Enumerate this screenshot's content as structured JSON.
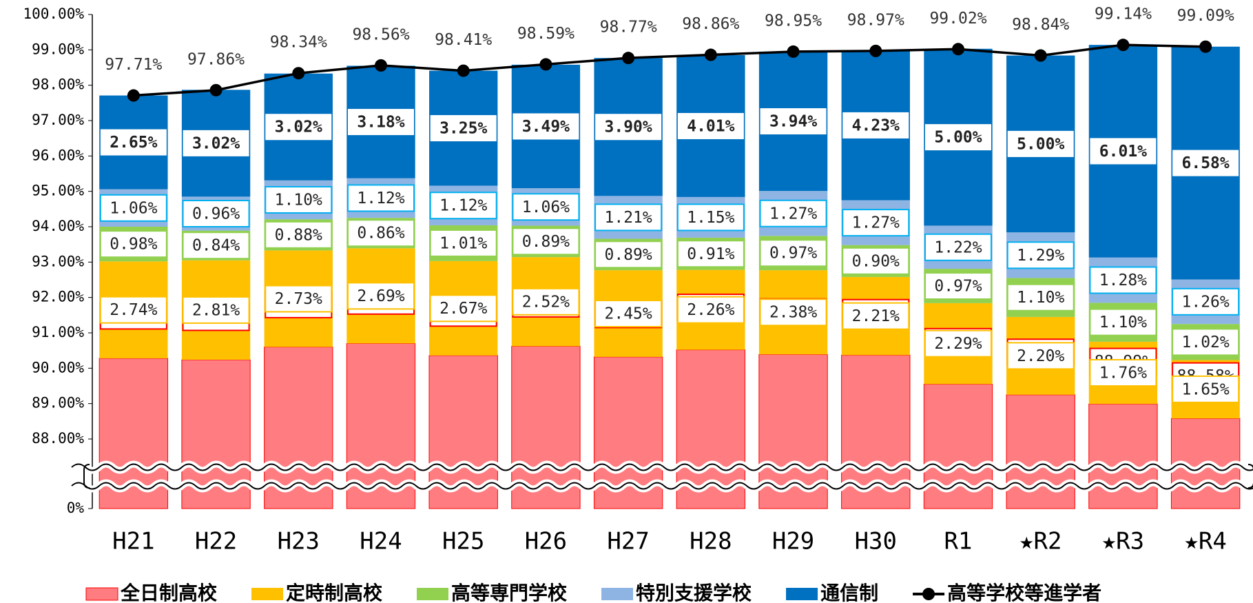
{
  "chart_data": {
    "type": "bar",
    "stacked": true,
    "axis_break": true,
    "grid": false,
    "legend": "bottom",
    "categories": [
      "H21",
      "H22",
      "H23",
      "H24",
      "H25",
      "H26",
      "H27",
      "H28",
      "H29",
      "H30",
      "R1",
      "★R2",
      "★R3",
      "★R4"
    ],
    "ylim": [
      0,
      100
    ],
    "yticks": [
      {
        "value": 0,
        "label": "0%"
      },
      {
        "value": 88,
        "label": "88.00%"
      },
      {
        "value": 89,
        "label": "89.00%"
      },
      {
        "value": 90,
        "label": "90.00%"
      },
      {
        "value": 91,
        "label": "91.00%"
      },
      {
        "value": 92,
        "label": "92.00%"
      },
      {
        "value": 93,
        "label": "93.00%"
      },
      {
        "value": 94,
        "label": "94.00%"
      },
      {
        "value": 95,
        "label": "95.00%"
      },
      {
        "value": 96,
        "label": "96.00%"
      },
      {
        "value": 97,
        "label": "97.00%"
      },
      {
        "value": 98,
        "label": "98.00%"
      },
      {
        "value": 99,
        "label": "99.00%"
      },
      {
        "value": 100,
        "label": "100.00%"
      }
    ],
    "series": [
      {
        "name": "全日制高校",
        "color": "#ff7c80",
        "border": "#ff0000",
        "values": [
          90.28,
          90.24,
          90.6,
          90.7,
          90.36,
          90.62,
          90.32,
          90.52,
          90.39,
          90.37,
          89.55,
          89.25,
          88.99,
          88.58
        ],
        "value_labels": [
          "90.28%",
          "90.24%",
          "90.60%",
          "90.70%",
          "90.36%",
          "90.62%",
          "90.32%",
          "90.52%",
          "90.39%",
          "90.37%",
          "89.55%",
          "89.25%",
          "88.99%",
          "88.58%"
        ]
      },
      {
        "name": "定時制高校",
        "color": "#ffc000",
        "border": "#ffc000",
        "values": [
          2.74,
          2.81,
          2.73,
          2.69,
          2.67,
          2.52,
          2.45,
          2.26,
          2.38,
          2.21,
          2.29,
          2.2,
          1.76,
          1.65
        ],
        "value_labels": [
          "2.74%",
          "2.81%",
          "2.73%",
          "2.69%",
          "2.67%",
          "2.52%",
          "2.45%",
          "2.26%",
          "2.38%",
          "2.21%",
          "2.29%",
          "2.20%",
          "1.76%",
          "1.65%"
        ]
      },
      {
        "name": "高等専門学校",
        "color": "#92d050",
        "border": "#92d050",
        "values": [
          0.98,
          0.84,
          0.88,
          0.86,
          1.01,
          0.89,
          0.89,
          0.91,
          0.97,
          0.9,
          0.97,
          1.1,
          1.1,
          1.02
        ],
        "value_labels": [
          "0.98%",
          "0.84%",
          "0.88%",
          "0.86%",
          "1.01%",
          "0.89%",
          "0.89%",
          "0.91%",
          "0.97%",
          "0.90%",
          "0.97%",
          "1.10%",
          "1.10%",
          "1.02%"
        ]
      },
      {
        "name": "特別支援学校",
        "color": "#8eb4e3",
        "border": "#00b0f0",
        "values": [
          1.06,
          0.96,
          1.1,
          1.12,
          1.12,
          1.06,
          1.21,
          1.15,
          1.27,
          1.27,
          1.22,
          1.29,
          1.28,
          1.26
        ],
        "value_labels": [
          "1.06%",
          "0.96%",
          "1.10%",
          "1.12%",
          "1.12%",
          "1.06%",
          "1.21%",
          "1.15%",
          "1.27%",
          "1.27%",
          "1.22%",
          "1.29%",
          "1.28%",
          "1.26%"
        ]
      },
      {
        "name": "通信制",
        "color": "#0070c0",
        "border": "#ffffff",
        "values": [
          2.65,
          3.02,
          3.02,
          3.18,
          3.25,
          3.49,
          3.9,
          4.01,
          3.94,
          4.23,
          5.0,
          5.0,
          6.01,
          6.58
        ],
        "value_labels": [
          "2.65%",
          "3.02%",
          "3.02%",
          "3.18%",
          "3.25%",
          "3.49%",
          "3.90%",
          "4.01%",
          "3.94%",
          "4.23%",
          "5.00%",
          "5.00%",
          "6.01%",
          "6.58%"
        ]
      },
      {
        "name": "高等学校等進学者",
        "type": "line",
        "color": "#000000",
        "values": [
          97.71,
          97.86,
          98.34,
          98.56,
          98.41,
          98.59,
          98.77,
          98.86,
          98.95,
          98.97,
          99.02,
          98.84,
          99.14,
          99.09
        ],
        "value_labels": [
          "97.71%",
          "97.86%",
          "98.34%",
          "98.56%",
          "98.41%",
          "98.59%",
          "98.77%",
          "98.86%",
          "98.95%",
          "98.97%",
          "99.02%",
          "98.84%",
          "99.14%",
          "99.09%"
        ]
      }
    ]
  }
}
